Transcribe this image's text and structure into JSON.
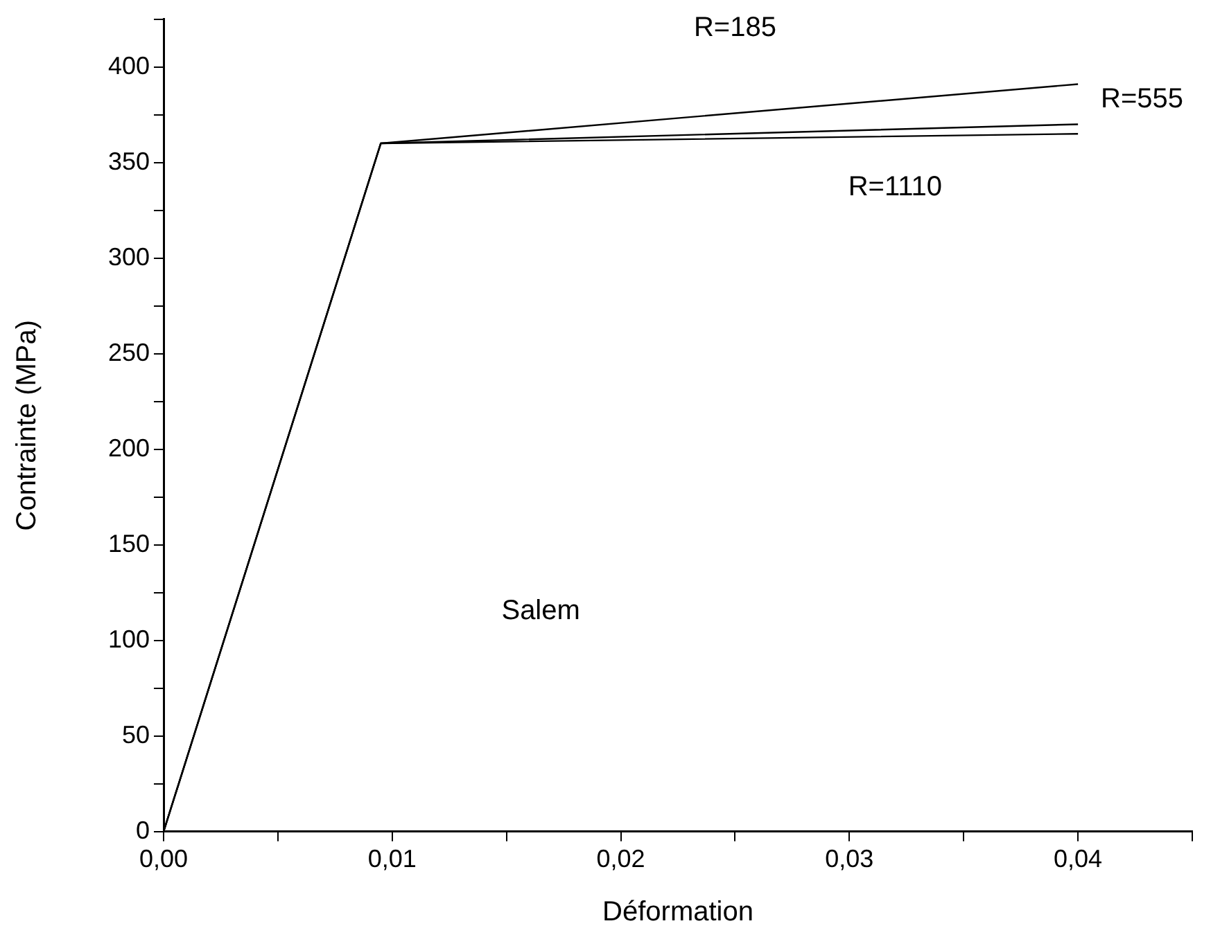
{
  "chart_data": {
    "type": "line",
    "xlabel": "Déformation",
    "ylabel": "Contrainte (MPa)",
    "xlim": [
      0,
      0.045
    ],
    "ylim": [
      0,
      425
    ],
    "xticks": [
      {
        "value": 0,
        "label": "0,00"
      },
      {
        "value": 0.005,
        "label": null
      },
      {
        "value": 0.01,
        "label": "0,01"
      },
      {
        "value": 0.015,
        "label": null
      },
      {
        "value": 0.02,
        "label": "0,02"
      },
      {
        "value": 0.025,
        "label": null
      },
      {
        "value": 0.03,
        "label": "0,03"
      },
      {
        "value": 0.035,
        "label": null
      },
      {
        "value": 0.04,
        "label": "0,04"
      },
      {
        "value": 0.045,
        "label": null
      }
    ],
    "yticks": [
      0,
      {
        "value": 25,
        "label": null
      },
      50,
      {
        "value": 75,
        "label": null
      },
      100,
      {
        "value": 125,
        "label": null
      },
      150,
      {
        "value": 175,
        "label": null
      },
      200,
      {
        "value": 225,
        "label": null
      },
      250,
      {
        "value": 275,
        "label": null
      },
      300,
      {
        "value": 325,
        "label": null
      },
      350,
      {
        "value": 375,
        "label": null
      },
      400,
      {
        "value": 425,
        "label": null
      }
    ],
    "x": [
      0,
      0.0095,
      0.04
    ],
    "series": [
      {
        "name": "R=185",
        "color": "#000000",
        "values": [
          0,
          360,
          391
        ]
      },
      {
        "name": "R=555",
        "color": "#000000",
        "values": [
          0,
          360,
          370
        ]
      },
      {
        "name": "R=1110",
        "color": "#000000",
        "values": [
          0,
          360,
          365
        ]
      }
    ],
    "annotations": [
      "Salem"
    ],
    "grid": false,
    "legend": false,
    "marker": "none",
    "line_style": "solid"
  }
}
